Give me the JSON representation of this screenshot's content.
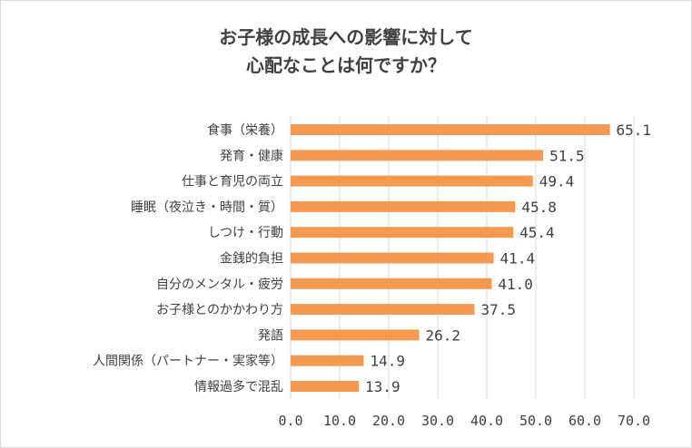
{
  "chart_data": {
    "type": "bar",
    "orientation": "horizontal",
    "title_lines": [
      "お子様の成長への影響に対して",
      "心配なことは何ですか？"
    ],
    "categories": [
      "食事（栄養）",
      "発育・健康",
      "仕事と育児の両立",
      "睡眠（夜泣き・時間・質）",
      "しつけ・行動",
      "金銭的負担",
      "自分のメンタル・疲労",
      "お子様とのかかわり方",
      "発語",
      "人間関係（パートナー・実家等）",
      "情報過多で混乱"
    ],
    "values": [
      65.1,
      51.5,
      49.4,
      45.8,
      45.4,
      41.4,
      41.0,
      37.5,
      26.2,
      14.9,
      13.9
    ],
    "value_labels": [
      "65.1",
      "51.5",
      "49.4",
      "45.8",
      "45.4",
      "41.4",
      "41.0",
      "37.5",
      "26.2",
      "14.9",
      "13.9"
    ],
    "xlim": [
      0,
      70
    ],
    "xticks": [
      0,
      10,
      20,
      30,
      40,
      50,
      60,
      70
    ],
    "xtick_labels": [
      "0.0",
      "10.0",
      "20.0",
      "30.0",
      "40.0",
      "50.0",
      "60.0",
      "70.0"
    ],
    "grid": true,
    "legend": "none",
    "bar_color": "#f4994f",
    "grid_color": "#d9d9d9"
  }
}
